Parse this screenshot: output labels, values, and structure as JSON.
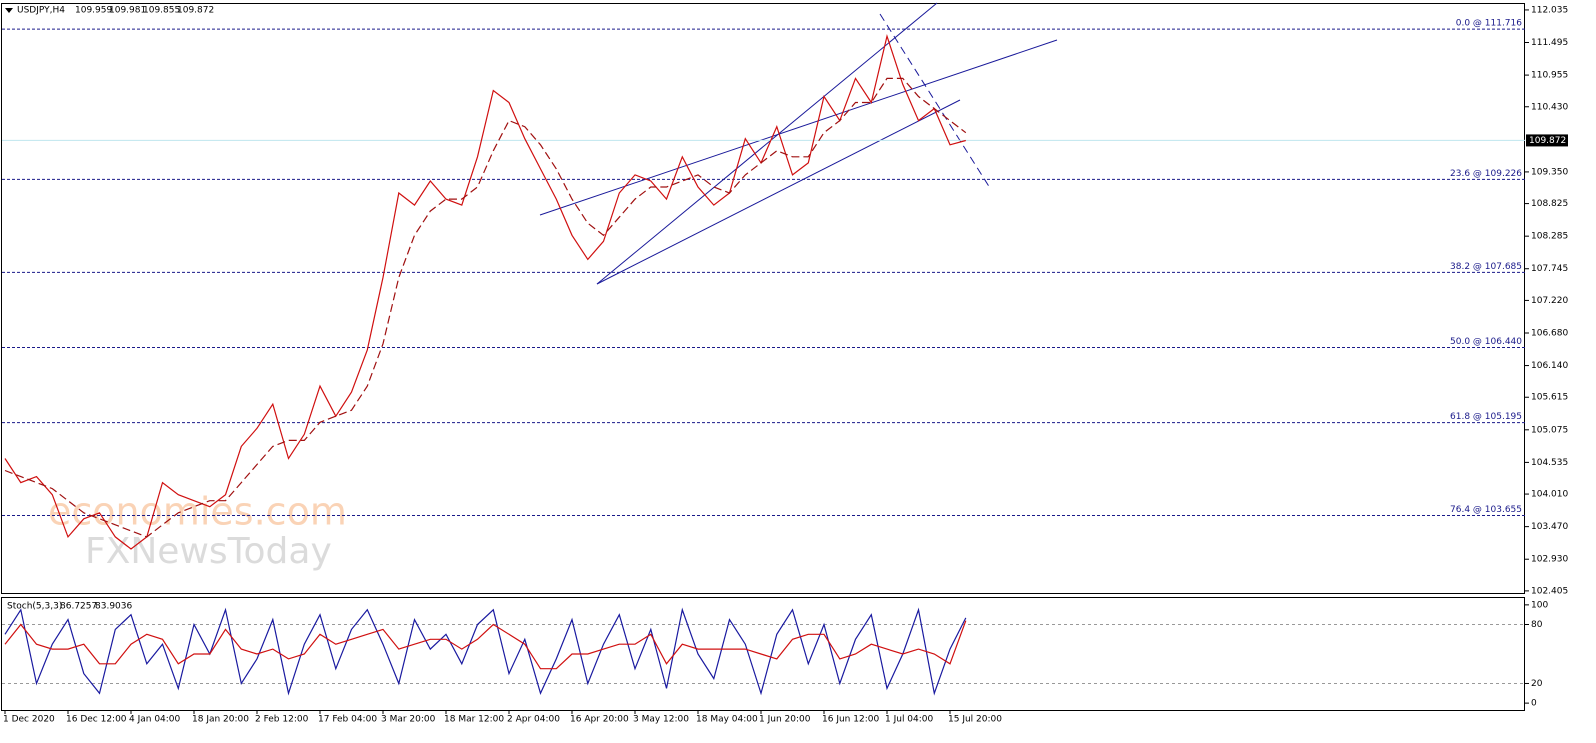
{
  "chart_data": [
    {
      "type": "line",
      "symbol": "USDJPY,H4",
      "ohlc": [
        109.959,
        109.981,
        109.855,
        109.872
      ],
      "last_price": 109.872,
      "ylim": [
        102.37,
        112.15
      ],
      "yticks": [
        112.035,
        111.495,
        110.955,
        {
          "value": 110.43,
          "label": "110.430"
        },
        {
          "value": 109.35,
          "label": "109.350"
        },
        108.825,
        108.285,
        107.745,
        {
          "value": 107.22,
          "label": "107.220"
        },
        {
          "value": 106.68,
          "label": "106.680"
        },
        {
          "value": 106.14,
          "label": "106.140"
        },
        105.615,
        105.075,
        104.535,
        {
          "value": 104.01,
          "label": "104.010"
        },
        {
          "value": 103.47,
          "label": "103.470"
        },
        {
          "value": 102.93,
          "label": "102.930"
        },
        102.405
      ],
      "categories": [
        "1 Dec 2020",
        null,
        null,
        null,
        "16 Dec 12:00",
        null,
        null,
        null,
        "4 Jan 04:00",
        null,
        null,
        null,
        "18 Jan 20:00",
        null,
        null,
        null,
        "2 Feb 12:00",
        null,
        null,
        null,
        "17 Feb 04:00",
        null,
        null,
        null,
        "3 Mar 20:00",
        null,
        null,
        null,
        "18 Mar 12:00",
        null,
        null,
        null,
        "2 Apr 04:00",
        null,
        null,
        null,
        "16 Apr 20:00",
        null,
        null,
        null,
        "3 May 12:00",
        null,
        null,
        null,
        "18 May 04:00",
        null,
        null,
        null,
        "1 Jun 20:00",
        null,
        null,
        null,
        "16 Jun 12:00",
        null,
        null,
        null,
        "1 Jul 04:00",
        null,
        null,
        null,
        "15 Jul 20:00",
        null
      ],
      "series": [
        {
          "color": "#d01010",
          "values": [
            104.6,
            104.2,
            104.3,
            104.0,
            103.3,
            103.6,
            103.7,
            103.3,
            103.1,
            103.3,
            104.2,
            104.0,
            103.9,
            103.8,
            104.0,
            104.8,
            105.1,
            105.5,
            104.6,
            105.0,
            105.8,
            105.3,
            105.7,
            106.4,
            107.6,
            109.0,
            108.8,
            109.2,
            108.9,
            108.8,
            109.6,
            110.7,
            110.5,
            109.9,
            109.4,
            108.9,
            108.3,
            107.9,
            108.2,
            109.0,
            109.3,
            109.2,
            108.9,
            109.6,
            109.1,
            108.8,
            109.0,
            109.9,
            109.5,
            110.1,
            109.3,
            109.5,
            110.6,
            110.2,
            110.9,
            110.5,
            111.6,
            110.8,
            110.2,
            110.4,
            109.8,
            109.87
          ]
        },
        {
          "color": "#a01010",
          "dashed": true,
          "values": [
            104.4,
            104.3,
            104.2,
            104.1,
            103.9,
            103.7,
            103.6,
            103.5,
            103.4,
            103.3,
            103.5,
            103.7,
            103.8,
            103.9,
            103.9,
            104.2,
            104.5,
            104.8,
            104.9,
            104.9,
            105.2,
            105.3,
            105.4,
            105.8,
            106.5,
            107.6,
            108.3,
            108.7,
            108.9,
            108.9,
            109.1,
            109.7,
            110.2,
            110.1,
            109.8,
            109.4,
            108.9,
            108.5,
            108.3,
            108.6,
            108.9,
            109.1,
            109.1,
            109.2,
            109.3,
            109.1,
            109.0,
            109.3,
            109.5,
            109.7,
            109.6,
            109.6,
            110.0,
            110.2,
            110.5,
            110.5,
            110.9,
            110.9,
            110.6,
            110.4,
            110.2,
            110.0
          ]
        }
      ],
      "fib_levels": [
        {
          "label": "0.0 @ 111.716",
          "value": 111.716
        },
        {
          "label": "23.6 @ 109.226",
          "value": 109.226
        },
        {
          "label": "38.2 @ 107.685",
          "value": 107.685
        },
        {
          "label": "50.0 @ 106.440",
          "value": 106.44
        },
        {
          "label": "61.8 @ 105.195",
          "value": 105.195
        },
        {
          "label": "76.4 @ 103.655",
          "value": 103.655
        }
      ],
      "watermarks": [
        "economies.com",
        "FXNewsToday"
      ]
    },
    {
      "type": "line",
      "title": "Stoch(5,3,3)",
      "readings": [
        86.7257,
        83.9036
      ],
      "ylim": [
        -7,
        108
      ],
      "yticks": [
        100,
        80,
        20,
        0
      ],
      "levels": [
        80,
        20
      ],
      "series": [
        {
          "color": "#1a1aa0",
          "values": [
            70,
            95,
            20,
            60,
            85,
            30,
            10,
            75,
            90,
            40,
            60,
            15,
            80,
            50,
            95,
            20,
            45,
            85,
            10,
            60,
            90,
            35,
            75,
            95,
            60,
            20,
            85,
            55,
            70,
            40,
            80,
            95,
            30,
            65,
            10,
            45,
            85,
            20,
            60,
            90,
            35,
            75,
            15,
            95,
            50,
            25,
            85,
            60,
            10,
            70,
            95,
            40,
            80,
            20,
            65,
            90,
            15,
            50,
            95,
            10,
            55,
            86.7257
          ]
        },
        {
          "color": "#d01010",
          "values": [
            60,
            80,
            60,
            55,
            55,
            60,
            40,
            40,
            60,
            70,
            65,
            40,
            50,
            50,
            75,
            55,
            50,
            55,
            45,
            50,
            70,
            60,
            65,
            70,
            75,
            55,
            60,
            65,
            65,
            55,
            65,
            80,
            70,
            60,
            35,
            35,
            50,
            50,
            55,
            60,
            60,
            70,
            40,
            60,
            55,
            55,
            55,
            55,
            50,
            45,
            65,
            70,
            70,
            45,
            50,
            60,
            55,
            50,
            55,
            50,
            40,
            83.9036
          ]
        }
      ]
    }
  ]
}
